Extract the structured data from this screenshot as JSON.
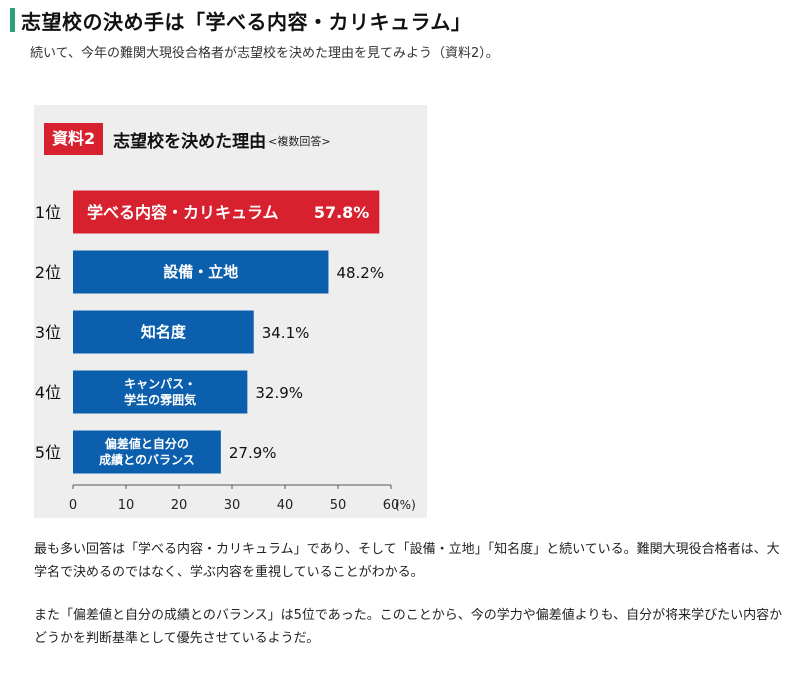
{
  "heading": "志望校の決め手は「学べる内容・カリキュラム」",
  "intro": "続いて、今年の難関大現役合格者が志望校を決めた理由を見てみよう（資料2）。",
  "figure": {
    "badge": "資料2",
    "title": "志望校を決めた理由",
    "subtitle": "<複数回答>"
  },
  "chart_data": {
    "type": "bar",
    "orientation": "horizontal",
    "title": "志望校を決めた理由",
    "subtitle": "<複数回答>",
    "xlim": [
      0,
      60
    ],
    "xticks": [
      "0",
      "10",
      "20",
      "30",
      "40",
      "50",
      "60"
    ],
    "unit": "(%)",
    "rows": [
      {
        "rank": "1位",
        "label_lines": [
          "学べる内容・カリキュラム"
        ],
        "value": 57.8,
        "value_text": "57.8%",
        "color": "#d7212f"
      },
      {
        "rank": "2位",
        "label_lines": [
          "設備・立地"
        ],
        "value": 48.2,
        "value_text": "48.2%",
        "color": "#0b5fad"
      },
      {
        "rank": "3位",
        "label_lines": [
          "知名度"
        ],
        "value": 34.1,
        "value_text": "34.1%",
        "color": "#0b5fad"
      },
      {
        "rank": "4位",
        "label_lines": [
          "キャンパス・",
          "学生の雰囲気"
        ],
        "value": 32.9,
        "value_text": "32.9%",
        "color": "#0b5fad"
      },
      {
        "rank": "5位",
        "label_lines": [
          "偏差値と自分の",
          "成績とのバランス"
        ],
        "value": 27.9,
        "value_text": "27.9%",
        "color": "#0b5fad"
      }
    ]
  },
  "paragraphs": [
    "最も多い回答は「学べる内容・カリキュラム」であり、そして「設備・立地」「知名度」と続いている。難関大現役合格者は、大学名で決めるのではなく、学ぶ内容を重視していることがわかる。",
    "また「偏差値と自分の成績とのバランス」は5位であった。このことから、今の学力や偏差値よりも、自分が将来学びたい内容かどうかを判断基準として優先させているようだ。"
  ]
}
